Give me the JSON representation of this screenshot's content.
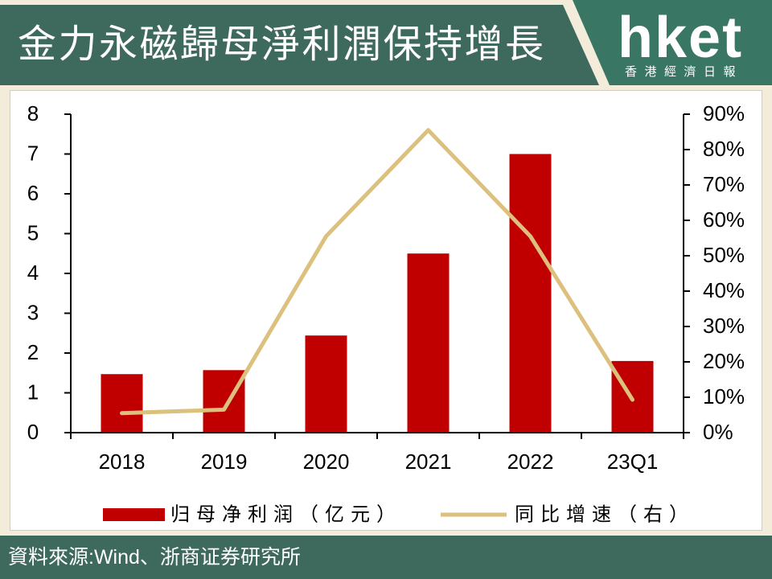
{
  "colors": {
    "bar": "#c00000",
    "line": "#dcc07e",
    "banner": "#3e695d",
    "logo_bg": "#3a7664",
    "page_bg": "#f3ecdb",
    "axis": "#000000"
  },
  "logo": {
    "wordmark": "hket",
    "tagline": "香港經濟日報"
  },
  "footer": {
    "source": "資料來源:Wind、浙商证券研究所"
  },
  "chart_data": {
    "type": "bar",
    "title": "金力永磁歸母淨利潤保持增長",
    "categories": [
      "2018",
      "2019",
      "2020",
      "2021",
      "2022",
      "23Q1"
    ],
    "series": [
      {
        "name": "归母净利润（亿元）",
        "type": "bar",
        "axis": "left",
        "values": [
          1.47,
          1.57,
          2.44,
          4.5,
          7.0,
          1.8
        ]
      },
      {
        "name": "同比增速（右）",
        "type": "line",
        "axis": "right",
        "values": [
          5.5,
          6.5,
          55.5,
          85.5,
          55.5,
          9.3
        ]
      }
    ],
    "y_left": {
      "ylim": [
        0,
        8
      ],
      "ticks": [
        "0",
        "1",
        "2",
        "3",
        "4",
        "5",
        "6",
        "7",
        "8"
      ]
    },
    "y_right": {
      "ylim": [
        0,
        90
      ],
      "ticks": [
        "0%",
        "10%",
        "20%",
        "30%",
        "40%",
        "50%",
        "60%",
        "70%",
        "80%",
        "90%"
      ]
    },
    "grid": false,
    "legend": "bottom"
  }
}
